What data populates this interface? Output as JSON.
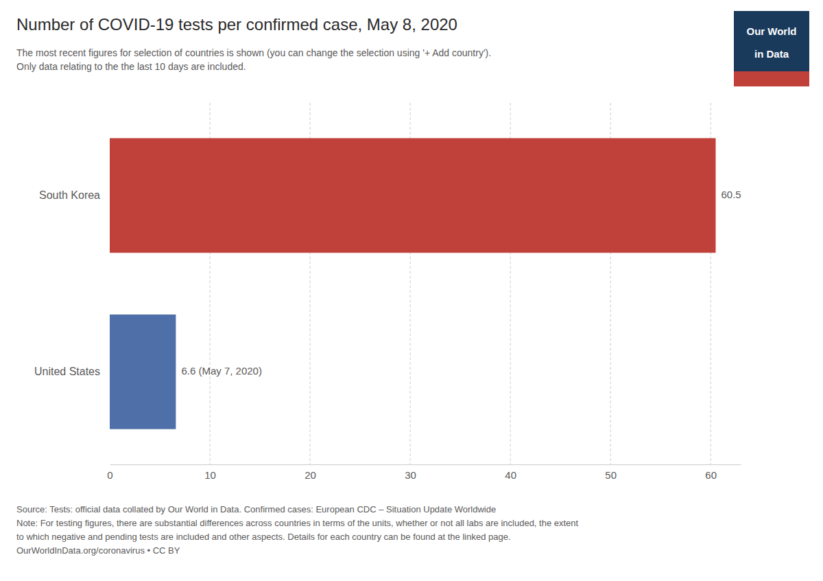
{
  "chart_data": {
    "type": "bar",
    "orientation": "horizontal",
    "title": "Number of COVID-19 tests per confirmed case, May 8, 2020",
    "subtitle": [
      "The most recent figures for selection of countries is shown (you can change the selection using '+ Add country').",
      "Only data relating to the the last 10 days are included."
    ],
    "categories": [
      "South Korea",
      "United States"
    ],
    "values": [
      60.5,
      6.6
    ],
    "value_labels": [
      "60.5",
      "6.6 (May 7, 2020)"
    ],
    "data_labels": true,
    "colors": [
      "#c0403a",
      "#4e6fa8"
    ],
    "xlim": [
      0,
      63
    ],
    "xticks": [
      0,
      10,
      20,
      30,
      40,
      50,
      60
    ],
    "grid": true,
    "source": [
      "Source: Tests: official data collated by Our World in Data. Confirmed cases: European CDC – Situation Update Worldwide",
      "Note: For testing figures, there are substantial differences across countries in terms of the units, whether or not all labs are included, the extent",
      "to which negative and pending tests are included and other aspects. Details for each country can be found at the linked page.",
      "OurWorldInData.org/coronavirus • CC BY"
    ],
    "logo": [
      "Our World",
      "in Data"
    ]
  }
}
